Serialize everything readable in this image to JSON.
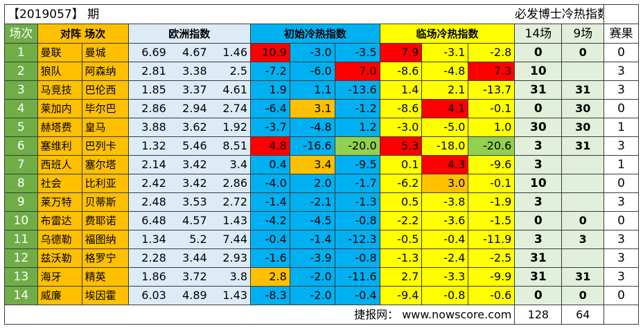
{
  "header": {
    "period": "【2019057】 期",
    "title": "必发博士冷热指数"
  },
  "columns": {
    "idx": "场次",
    "teams": "对阵 场次",
    "euro": "欧洲指数",
    "init": "初始冷热指数",
    "live": "临场冷热指数",
    "c14": "14场",
    "c9": "9场",
    "result": "赛果"
  },
  "colors": {
    "green": "#70ad47",
    "orange": "#ffc000",
    "lightblue": "#ddebf7",
    "blue": "#00b0f0",
    "yellow": "#ffff00",
    "lightgreen": "#e2efda",
    "red": "#ff0000",
    "limegreen": "#92d050"
  },
  "rows": [
    {
      "idx": "1",
      "home": "曼联",
      "away": "曼城",
      "euro": [
        "6.69",
        "4.67",
        "1.46"
      ],
      "init": [
        "10.9",
        "-3.0",
        "-3.5"
      ],
      "live": [
        "7.9",
        "-3.1",
        "-2.8"
      ],
      "c14": "0",
      "c9": "0",
      "result": "0"
    },
    {
      "idx": "2",
      "home": "狼队",
      "away": "阿森纳",
      "euro": [
        "2.81",
        "3.38",
        "2.5"
      ],
      "init": [
        "-7.2",
        "-6.0",
        "7.0"
      ],
      "live": [
        "-8.6",
        "-4.8",
        "7.3"
      ],
      "c14": "10",
      "c9": "",
      "result": "3"
    },
    {
      "idx": "3",
      "home": "马竞技",
      "away": "巴伦西",
      "euro": [
        "1.85",
        "3.37",
        "4.61"
      ],
      "init": [
        "1.9",
        "1.1",
        "-13.6"
      ],
      "live": [
        "1.4",
        "2.1",
        "-13.7"
      ],
      "c14": "31",
      "c9": "31",
      "result": "3"
    },
    {
      "idx": "4",
      "home": "莱加内",
      "away": "毕尔巴",
      "euro": [
        "2.86",
        "2.94",
        "2.74"
      ],
      "init": [
        "-6.4",
        "3.1",
        "-1.2"
      ],
      "live": [
        "-8.6",
        "4.1",
        "-0.1"
      ],
      "c14": "0",
      "c9": "30",
      "result": "0"
    },
    {
      "idx": "5",
      "home": "赫塔费",
      "away": "皇马",
      "euro": [
        "3.88",
        "3.62",
        "1.92"
      ],
      "init": [
        "-3.7",
        "-4.8",
        "1.2"
      ],
      "live": [
        "-3.0",
        "-5.0",
        "1.0"
      ],
      "c14": "30",
      "c9": "30",
      "result": "1"
    },
    {
      "idx": "6",
      "home": "塞维利",
      "away": "巴列卡",
      "euro": [
        "1.32",
        "5.46",
        "8.51"
      ],
      "init": [
        "4.8",
        "-16.6",
        "-20.0"
      ],
      "live": [
        "5.3",
        "-18.0",
        "-20.6"
      ],
      "c14": "3",
      "c9": "31",
      "result": "3"
    },
    {
      "idx": "7",
      "home": "西班人",
      "away": "塞尔塔",
      "euro": [
        "2.14",
        "3.42",
        "3.4"
      ],
      "init": [
        "0.4",
        "3.4",
        "-9.5"
      ],
      "live": [
        "0.1",
        "4.3",
        "-9.6"
      ],
      "c14": "3",
      "c9": "",
      "result": "1"
    },
    {
      "idx": "8",
      "home": "社会",
      "away": "比利亚",
      "euro": [
        "2.42",
        "3.42",
        "2.86"
      ],
      "init": [
        "-4.0",
        "2.0",
        "-1.7"
      ],
      "live": [
        "-6.2",
        "3.0",
        "-0.1"
      ],
      "c14": "10",
      "c9": "",
      "result": "0"
    },
    {
      "idx": "9",
      "home": "莱万特",
      "away": "贝蒂斯",
      "euro": [
        "2.48",
        "3.53",
        "2.72"
      ],
      "init": [
        "-1.4",
        "-2.1",
        "-1.3"
      ],
      "live": [
        "0.5",
        "-3.8",
        "-1.9"
      ],
      "c14": "3",
      "c9": "",
      "result": "3"
    },
    {
      "idx": "10",
      "home": "布雷达",
      "away": "费耶诺",
      "euro": [
        "6.48",
        "4.57",
        "1.43"
      ],
      "init": [
        "-4.2",
        "-4.5",
        "-0.8"
      ],
      "live": [
        "-2.2",
        "-3.6",
        "-1.5"
      ],
      "c14": "0",
      "c9": "0",
      "result": "0"
    },
    {
      "idx": "11",
      "home": "乌德勒",
      "away": "福图纳",
      "euro": [
        "1.34",
        "5.2",
        "7.44"
      ],
      "init": [
        "-0.4",
        "-1.4",
        "-12.3"
      ],
      "live": [
        "-0.5",
        "-0.4",
        "-11.9"
      ],
      "c14": "3",
      "c9": "3",
      "result": "3"
    },
    {
      "idx": "12",
      "home": "兹沃勒",
      "away": "格罗宁",
      "euro": [
        "2.28",
        "3.44",
        "2.93"
      ],
      "init": [
        "-1.6",
        "-3.9",
        "-0.8"
      ],
      "live": [
        "-1.3",
        "-2.4",
        "-2.5"
      ],
      "c14": "31",
      "c9": "",
      "result": "3"
    },
    {
      "idx": "13",
      "home": "海牙",
      "away": "精英",
      "euro": [
        "1.86",
        "3.72",
        "3.8"
      ],
      "init": [
        "2.8",
        "-2.0",
        "-11.6"
      ],
      "live": [
        "2.7",
        "-3.3",
        "-9.9"
      ],
      "c14": "31",
      "c9": "31",
      "result": "3"
    },
    {
      "idx": "14",
      "home": "威廉",
      "away": "埃因霍",
      "euro": [
        "6.03",
        "4.89",
        "1.43"
      ],
      "init": [
        "-8.3",
        "-2.0",
        "-0.4"
      ],
      "live": [
        "-9.4",
        "-0.8",
        "-0.6"
      ],
      "c14": "0",
      "c9": "0",
      "result": "0"
    }
  ],
  "highlights": {
    "init": [
      [
        "red",
        null,
        null
      ],
      [
        null,
        null,
        "red"
      ],
      [
        null,
        null,
        null
      ],
      [
        null,
        "orange",
        null
      ],
      [
        null,
        null,
        null
      ],
      [
        "red",
        null,
        "limegreen"
      ],
      [
        null,
        "orange",
        null
      ],
      [
        null,
        null,
        null
      ],
      [
        null,
        null,
        null
      ],
      [
        null,
        null,
        null
      ],
      [
        null,
        null,
        null
      ],
      [
        null,
        null,
        null
      ],
      [
        "orange",
        null,
        null
      ],
      [
        null,
        null,
        null
      ]
    ],
    "live": [
      [
        "red",
        null,
        null
      ],
      [
        null,
        null,
        "red"
      ],
      [
        null,
        null,
        null
      ],
      [
        null,
        "red",
        null
      ],
      [
        null,
        null,
        null
      ],
      [
        "red",
        null,
        "limegreen"
      ],
      [
        null,
        "red",
        null
      ],
      [
        null,
        "orange",
        null
      ],
      [
        null,
        null,
        null
      ],
      [
        null,
        null,
        null
      ],
      [
        null,
        null,
        null
      ],
      [
        null,
        null,
        null
      ],
      [
        null,
        null,
        null
      ],
      [
        null,
        null,
        null
      ]
    ]
  },
  "footer": {
    "source": "捷报网： www.nowscore.com",
    "total14": "128",
    "total9": "64"
  }
}
